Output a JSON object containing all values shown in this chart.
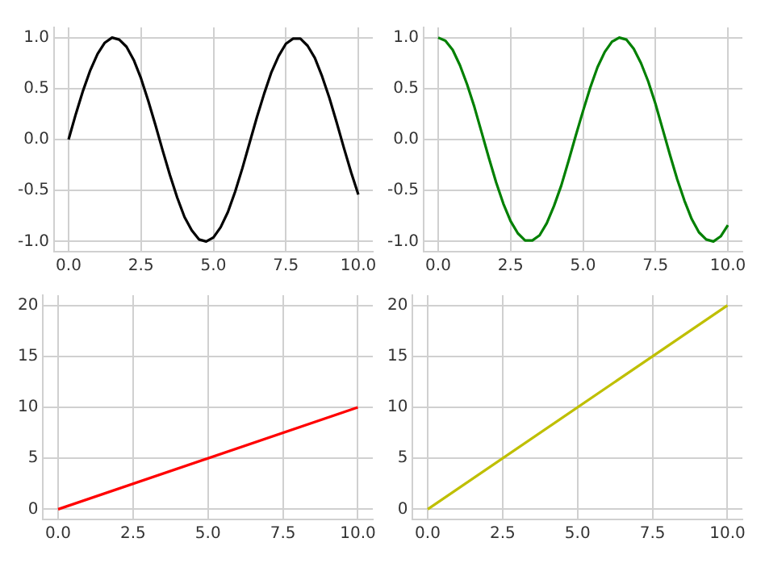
{
  "chart_data": [
    {
      "type": "line",
      "x": [
        0,
        0.25,
        0.5,
        0.75,
        1,
        1.25,
        1.5,
        1.75,
        2,
        2.25,
        2.5,
        2.75,
        3,
        3.25,
        3.5,
        3.75,
        4,
        4.25,
        4.5,
        4.75,
        5,
        5.25,
        5.5,
        5.75,
        6,
        6.25,
        6.5,
        6.75,
        7,
        7.25,
        7.5,
        7.75,
        8,
        8.25,
        8.5,
        8.75,
        9,
        9.25,
        9.5,
        9.75,
        10
      ],
      "values": [
        0,
        0.25,
        0.48,
        0.68,
        0.84,
        0.95,
        1.0,
        0.98,
        0.91,
        0.78,
        0.6,
        0.38,
        0.14,
        -0.11,
        -0.35,
        -0.57,
        -0.76,
        -0.89,
        -0.98,
        -1.0,
        -0.96,
        -0.86,
        -0.71,
        -0.51,
        -0.28,
        -0.03,
        0.22,
        0.45,
        0.66,
        0.82,
        0.94,
        0.99,
        0.99,
        0.92,
        0.8,
        0.62,
        0.41,
        0.17,
        -0.08,
        -0.32,
        -0.54
      ],
      "color": "#000000",
      "xlim": [
        -0.5,
        10.5
      ],
      "ylim": [
        -1.1,
        1.1
      ],
      "xticks": [
        {
          "value": 0,
          "label": "0.0"
        },
        {
          "value": 2.5,
          "label": "2.5"
        },
        {
          "value": 5,
          "label": "5.0"
        },
        {
          "value": 7.5,
          "label": "7.5"
        },
        {
          "value": 10,
          "label": "10.0"
        }
      ],
      "yticks": [
        {
          "value": -1,
          "label": "-1.0"
        },
        {
          "value": -0.5,
          "label": "-0.5"
        },
        {
          "value": 0,
          "label": "0.0"
        },
        {
          "value": 0.5,
          "label": "0.5"
        },
        {
          "value": 1,
          "label": "1.0"
        }
      ],
      "grid": true
    },
    {
      "type": "line",
      "x": [
        0,
        0.25,
        0.5,
        0.75,
        1,
        1.25,
        1.5,
        1.75,
        2,
        2.25,
        2.5,
        2.75,
        3,
        3.25,
        3.5,
        3.75,
        4,
        4.25,
        4.5,
        4.75,
        5,
        5.25,
        5.5,
        5.75,
        6,
        6.25,
        6.5,
        6.75,
        7,
        7.25,
        7.5,
        7.75,
        8,
        8.25,
        8.5,
        8.75,
        9,
        9.25,
        9.5,
        9.75,
        10
      ],
      "values": [
        1.0,
        0.97,
        0.88,
        0.73,
        0.54,
        0.32,
        0.07,
        -0.18,
        -0.42,
        -0.63,
        -0.8,
        -0.92,
        -0.99,
        -0.99,
        -0.94,
        -0.82,
        -0.65,
        -0.45,
        -0.21,
        0.04,
        0.28,
        0.51,
        0.71,
        0.86,
        0.96,
        1.0,
        0.98,
        0.89,
        0.75,
        0.57,
        0.35,
        0.1,
        -0.15,
        -0.39,
        -0.6,
        -0.78,
        -0.91,
        -0.98,
        -1.0,
        -0.95,
        -0.84
      ],
      "color": "#008000",
      "xlim": [
        -0.5,
        10.5
      ],
      "ylim": [
        -1.1,
        1.1
      ],
      "xticks": [
        {
          "value": 0,
          "label": "0.0"
        },
        {
          "value": 2.5,
          "label": "2.5"
        },
        {
          "value": 5,
          "label": "5.0"
        },
        {
          "value": 7.5,
          "label": "7.5"
        },
        {
          "value": 10,
          "label": "10.0"
        }
      ],
      "yticks": [
        {
          "value": -1,
          "label": "-1.0"
        },
        {
          "value": -0.5,
          "label": "-0.5"
        },
        {
          "value": 0,
          "label": "0.0"
        },
        {
          "value": 0.5,
          "label": "0.5"
        },
        {
          "value": 1,
          "label": "1.0"
        }
      ],
      "grid": true
    },
    {
      "type": "line",
      "x": [
        0,
        10
      ],
      "values": [
        0,
        10
      ],
      "color": "#ff0000",
      "xlim": [
        -0.5,
        10.5
      ],
      "ylim": [
        -1,
        21
      ],
      "xticks": [
        {
          "value": 0,
          "label": "0.0"
        },
        {
          "value": 2.5,
          "label": "2.5"
        },
        {
          "value": 5,
          "label": "5.0"
        },
        {
          "value": 7.5,
          "label": "7.5"
        },
        {
          "value": 10,
          "label": "10.0"
        }
      ],
      "yticks": [
        0,
        5,
        10,
        15,
        20
      ],
      "grid": true
    },
    {
      "type": "line",
      "x": [
        0,
        10
      ],
      "values": [
        0,
        20
      ],
      "color": "#bfbf00",
      "xlim": [
        -0.5,
        10.5
      ],
      "ylim": [
        -1,
        21
      ],
      "xticks": [
        {
          "value": 0,
          "label": "0.0"
        },
        {
          "value": 2.5,
          "label": "2.5"
        },
        {
          "value": 5,
          "label": "5.0"
        },
        {
          "value": 7.5,
          "label": "7.5"
        },
        {
          "value": 10,
          "label": "10.0"
        }
      ],
      "yticks": [
        0,
        5,
        10,
        15,
        20
      ],
      "grid": true
    }
  ]
}
